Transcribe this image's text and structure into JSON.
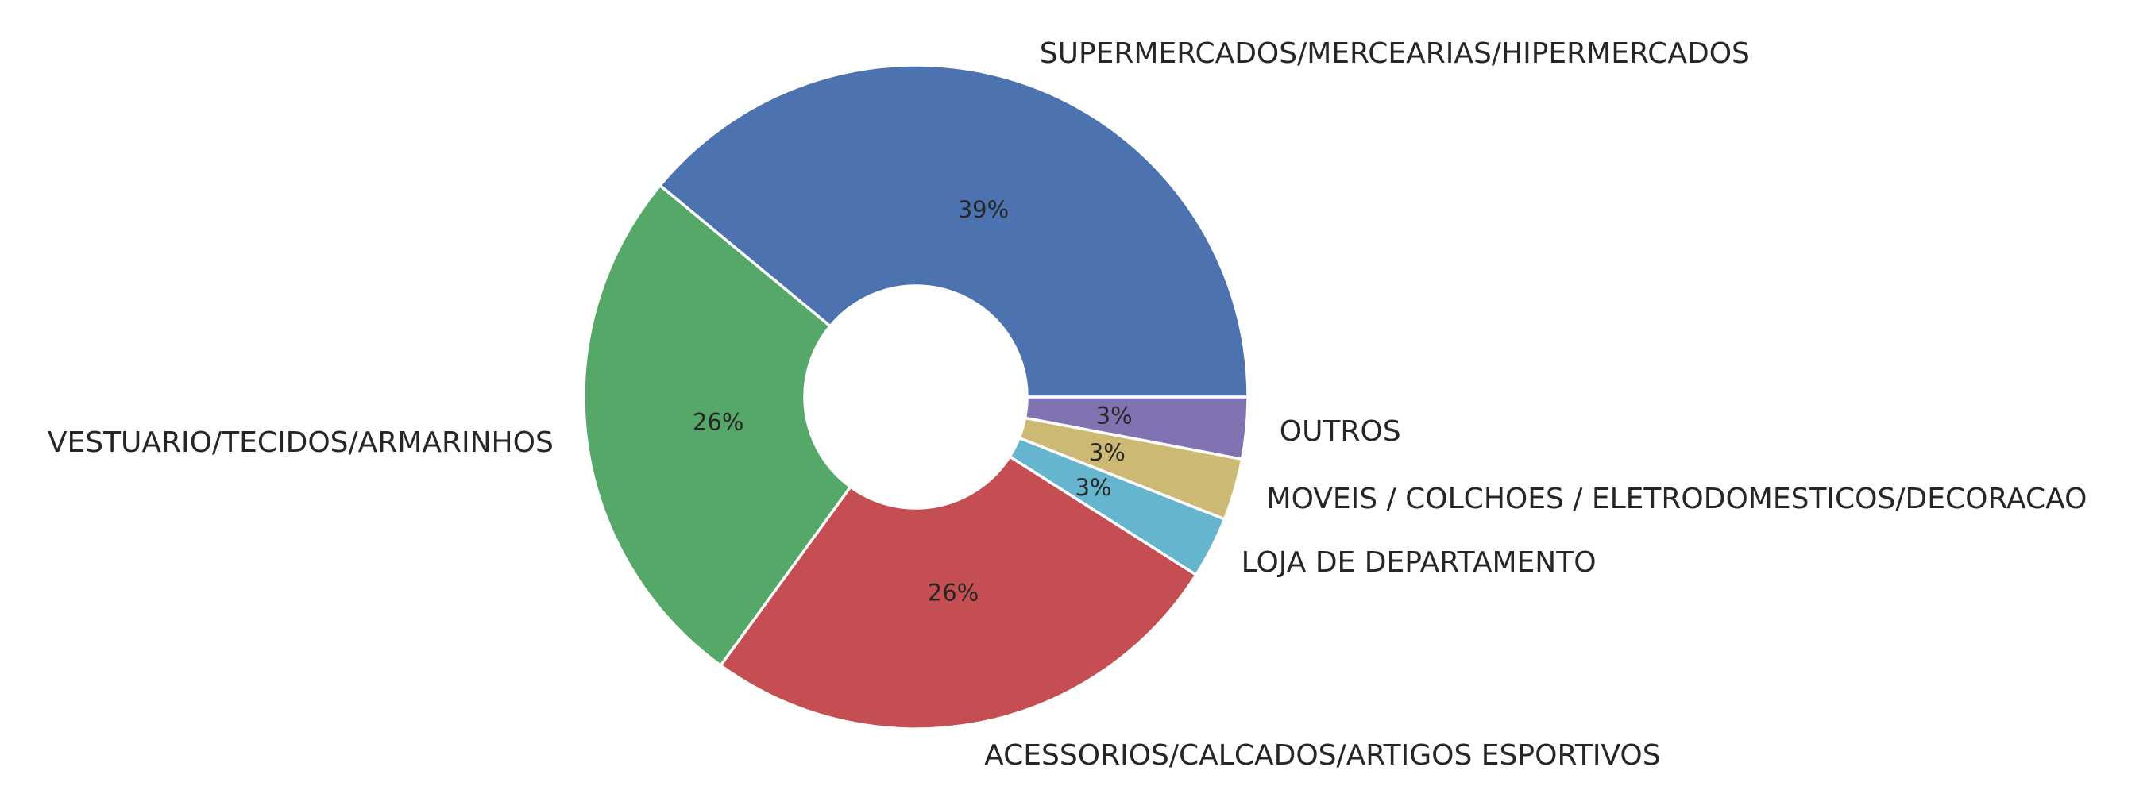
{
  "chart_data": {
    "type": "pie",
    "donut": true,
    "start_angle_deg": 0,
    "direction": "counterclockwise",
    "slices": [
      {
        "label": "SUPERMERCADOS/MERCEARIAS/HIPERMERCADOS",
        "percent": 39,
        "percent_text": "39%",
        "color": "#4c72b0"
      },
      {
        "label": "VESTUARIO/TECIDOS/ARMARINHOS",
        "percent": 26,
        "percent_text": "26%",
        "color": "#55a868"
      },
      {
        "label": "ACESSORIOS/CALCADOS/ARTIGOS ESPORTIVOS",
        "percent": 26,
        "percent_text": "26%",
        "color": "#c44e52"
      },
      {
        "label": "LOJA DE DEPARTAMENTO",
        "percent": 3,
        "percent_text": "3%",
        "color": "#64b5cd"
      },
      {
        "label": "MOVEIS / COLCHOES / ELETRODOMESTICOS/DECORACAO",
        "percent": 3,
        "percent_text": "3%",
        "color": "#ccb974"
      },
      {
        "label": "OUTROS",
        "percent": 3,
        "percent_text": "3%",
        "color": "#8172b2"
      }
    ]
  }
}
